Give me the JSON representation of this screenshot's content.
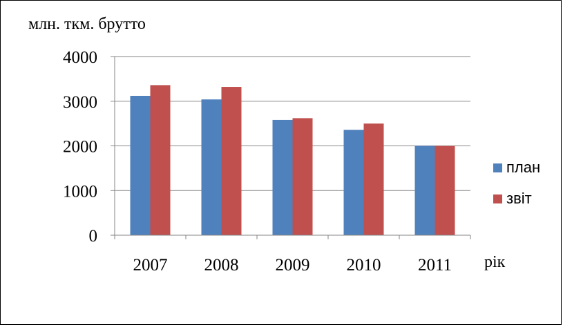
{
  "chart_data": {
    "type": "bar",
    "title": "",
    "ylabel": "млн. ткм. брутто",
    "xlabel": "рік",
    "categories": [
      "2007",
      "2008",
      "2009",
      "2010",
      "2011"
    ],
    "series": [
      {
        "name": "план",
        "color": "#4f81bd",
        "values": [
          3120,
          3040,
          2580,
          2360,
          2000
        ]
      },
      {
        "name": "звіт",
        "color": "#c0504d",
        "values": [
          3360,
          3320,
          2620,
          2500,
          2000
        ]
      }
    ],
    "ylim": [
      0,
      4000
    ],
    "yticks": [
      "0",
      "1000",
      "2000",
      "3000",
      "4000"
    ],
    "grid": true,
    "legend_position": "right"
  }
}
